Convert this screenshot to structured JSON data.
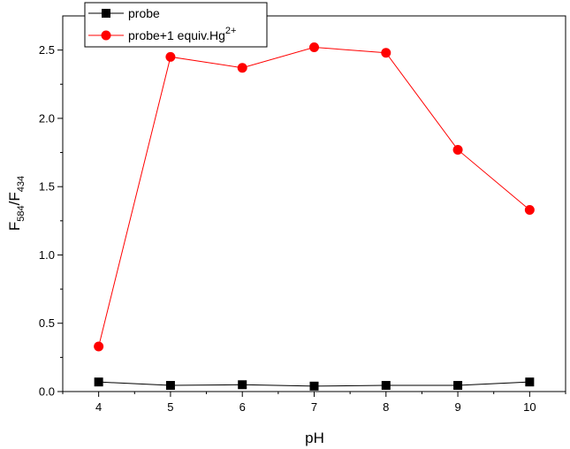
{
  "chart_data": {
    "type": "line",
    "x": [
      4,
      5,
      6,
      7,
      8,
      9,
      10
    ],
    "xlim": [
      3.5,
      10.5
    ],
    "ylim": [
      0.0,
      2.75
    ],
    "xticks": [
      "4",
      "5",
      "6",
      "7",
      "8",
      "9",
      "10"
    ],
    "yticks": [
      "0.0",
      "0.5",
      "1.0",
      "1.5",
      "2.0",
      "2.5"
    ],
    "xlabel": "pH",
    "ylabel": {
      "base": "F",
      "num_sub": "584",
      "sep": "/F",
      "den_sub": "434"
    },
    "legend_position": "top-left",
    "grid": false,
    "series": [
      {
        "name": "probe",
        "color": "#000000",
        "marker": "square",
        "values": [
          0.07,
          0.045,
          0.05,
          0.04,
          0.045,
          0.045,
          0.07
        ]
      },
      {
        "name": "probe+1 equiv.Hg",
        "name_sup": "2+",
        "color": "#ff0000",
        "marker": "circle",
        "values": [
          0.33,
          2.45,
          2.37,
          2.52,
          2.48,
          1.77,
          1.33
        ]
      }
    ]
  }
}
